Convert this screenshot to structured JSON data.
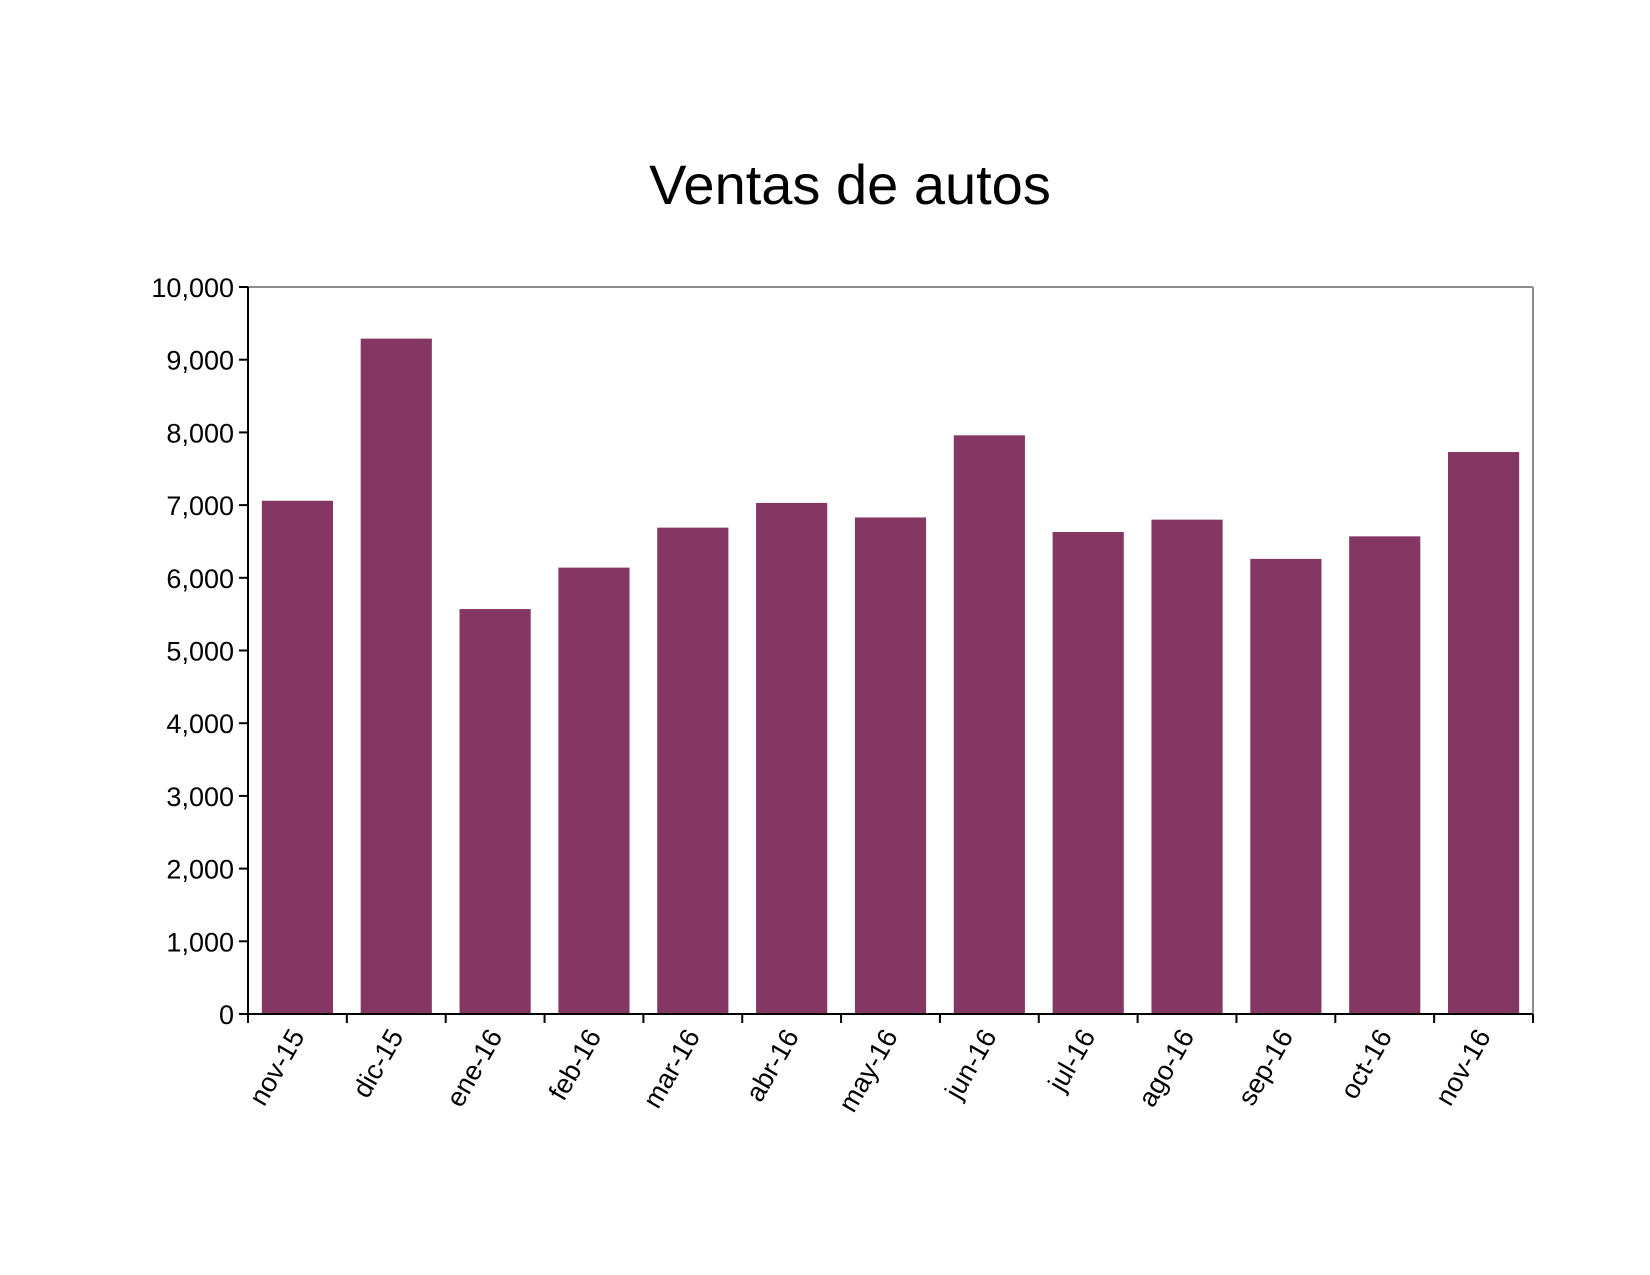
{
  "chart_data": {
    "type": "bar",
    "title": "Ventas de autos",
    "xlabel": "",
    "ylabel": "",
    "categories": [
      "nov-15",
      "dic-15",
      "ene-16",
      "feb-16",
      "mar-16",
      "abr-16",
      "may-16",
      "jun-16",
      "jul-16",
      "ago-16",
      "sep-16",
      "oct-16",
      "nov-16"
    ],
    "values": [
      7060,
      9290,
      5570,
      6140,
      6690,
      7030,
      6830,
      7960,
      6630,
      6800,
      6260,
      6570,
      7730
    ],
    "ylim": [
      0,
      10000
    ],
    "yticks": [
      "0",
      "1,000",
      "2,000",
      "3,000",
      "4,000",
      "5,000",
      "6,000",
      "7,000",
      "8,000",
      "9,000",
      "10,000"
    ],
    "ytick_values": [
      0,
      1000,
      2000,
      3000,
      4000,
      5000,
      6000,
      7000,
      8000,
      9000,
      10000
    ],
    "grid": false,
    "legend": "none",
    "bar_color": "#853764"
  }
}
